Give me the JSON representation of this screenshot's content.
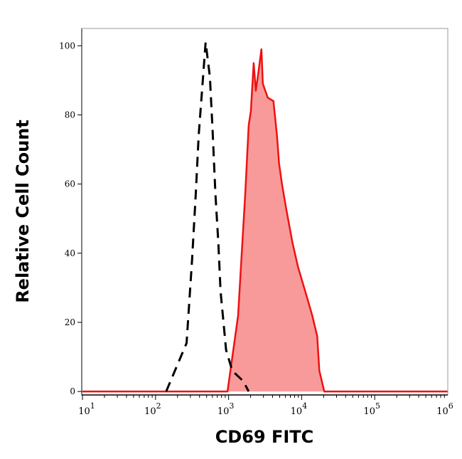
{
  "chart_data": {
    "type": "area",
    "title": "",
    "xlabel": "CD69 FITC",
    "ylabel": "Relative Cell Count",
    "x_scale": "log",
    "xlim": [
      10,
      1000000
    ],
    "ylim": [
      -1,
      105
    ],
    "x_ticks": [
      {
        "base": "10",
        "exp": "1",
        "value": 10
      },
      {
        "base": "10",
        "exp": "2",
        "value": 100
      },
      {
        "base": "10",
        "exp": "3",
        "value": 1000
      },
      {
        "base": "10",
        "exp": "4",
        "value": 10000
      },
      {
        "base": "10",
        "exp": "5",
        "value": 100000
      },
      {
        "base": "10",
        "exp": "6",
        "value": 1000000
      }
    ],
    "y_ticks": [
      "0",
      "20",
      "40",
      "60",
      "80",
      "100"
    ],
    "grid": false,
    "series": [
      {
        "style": "dashed-line",
        "color": "#000000",
        "x": [
          140,
          266,
          316,
          355,
          389,
          447,
          485,
          555,
          603,
          661,
          724,
          776,
          925,
          1122,
          1585,
          1884
        ],
        "y": [
          0,
          14,
          38,
          57,
          74,
          91,
          101,
          91,
          76,
          57,
          43,
          29,
          12,
          6,
          3,
          0
        ]
      },
      {
        "style": "filled",
        "color": "#ee1111",
        "fill": "#f99a9a",
        "x": [
          10,
          500,
          966,
          1349,
          1514,
          1687,
          1884,
          2014,
          2203,
          2355,
          2512,
          2812,
          2944,
          3436,
          4111,
          4592,
          4900,
          5370,
          6124,
          7482,
          8913,
          11170,
          13960,
          16330,
          17460,
          20370,
          1000000
        ],
        "y": [
          0,
          0,
          0,
          22,
          40,
          57,
          77,
          81,
          95,
          87,
          91,
          99,
          89,
          85,
          84,
          74,
          66,
          60,
          53,
          43,
          36,
          29,
          22,
          16,
          6,
          0,
          0
        ]
      }
    ]
  }
}
